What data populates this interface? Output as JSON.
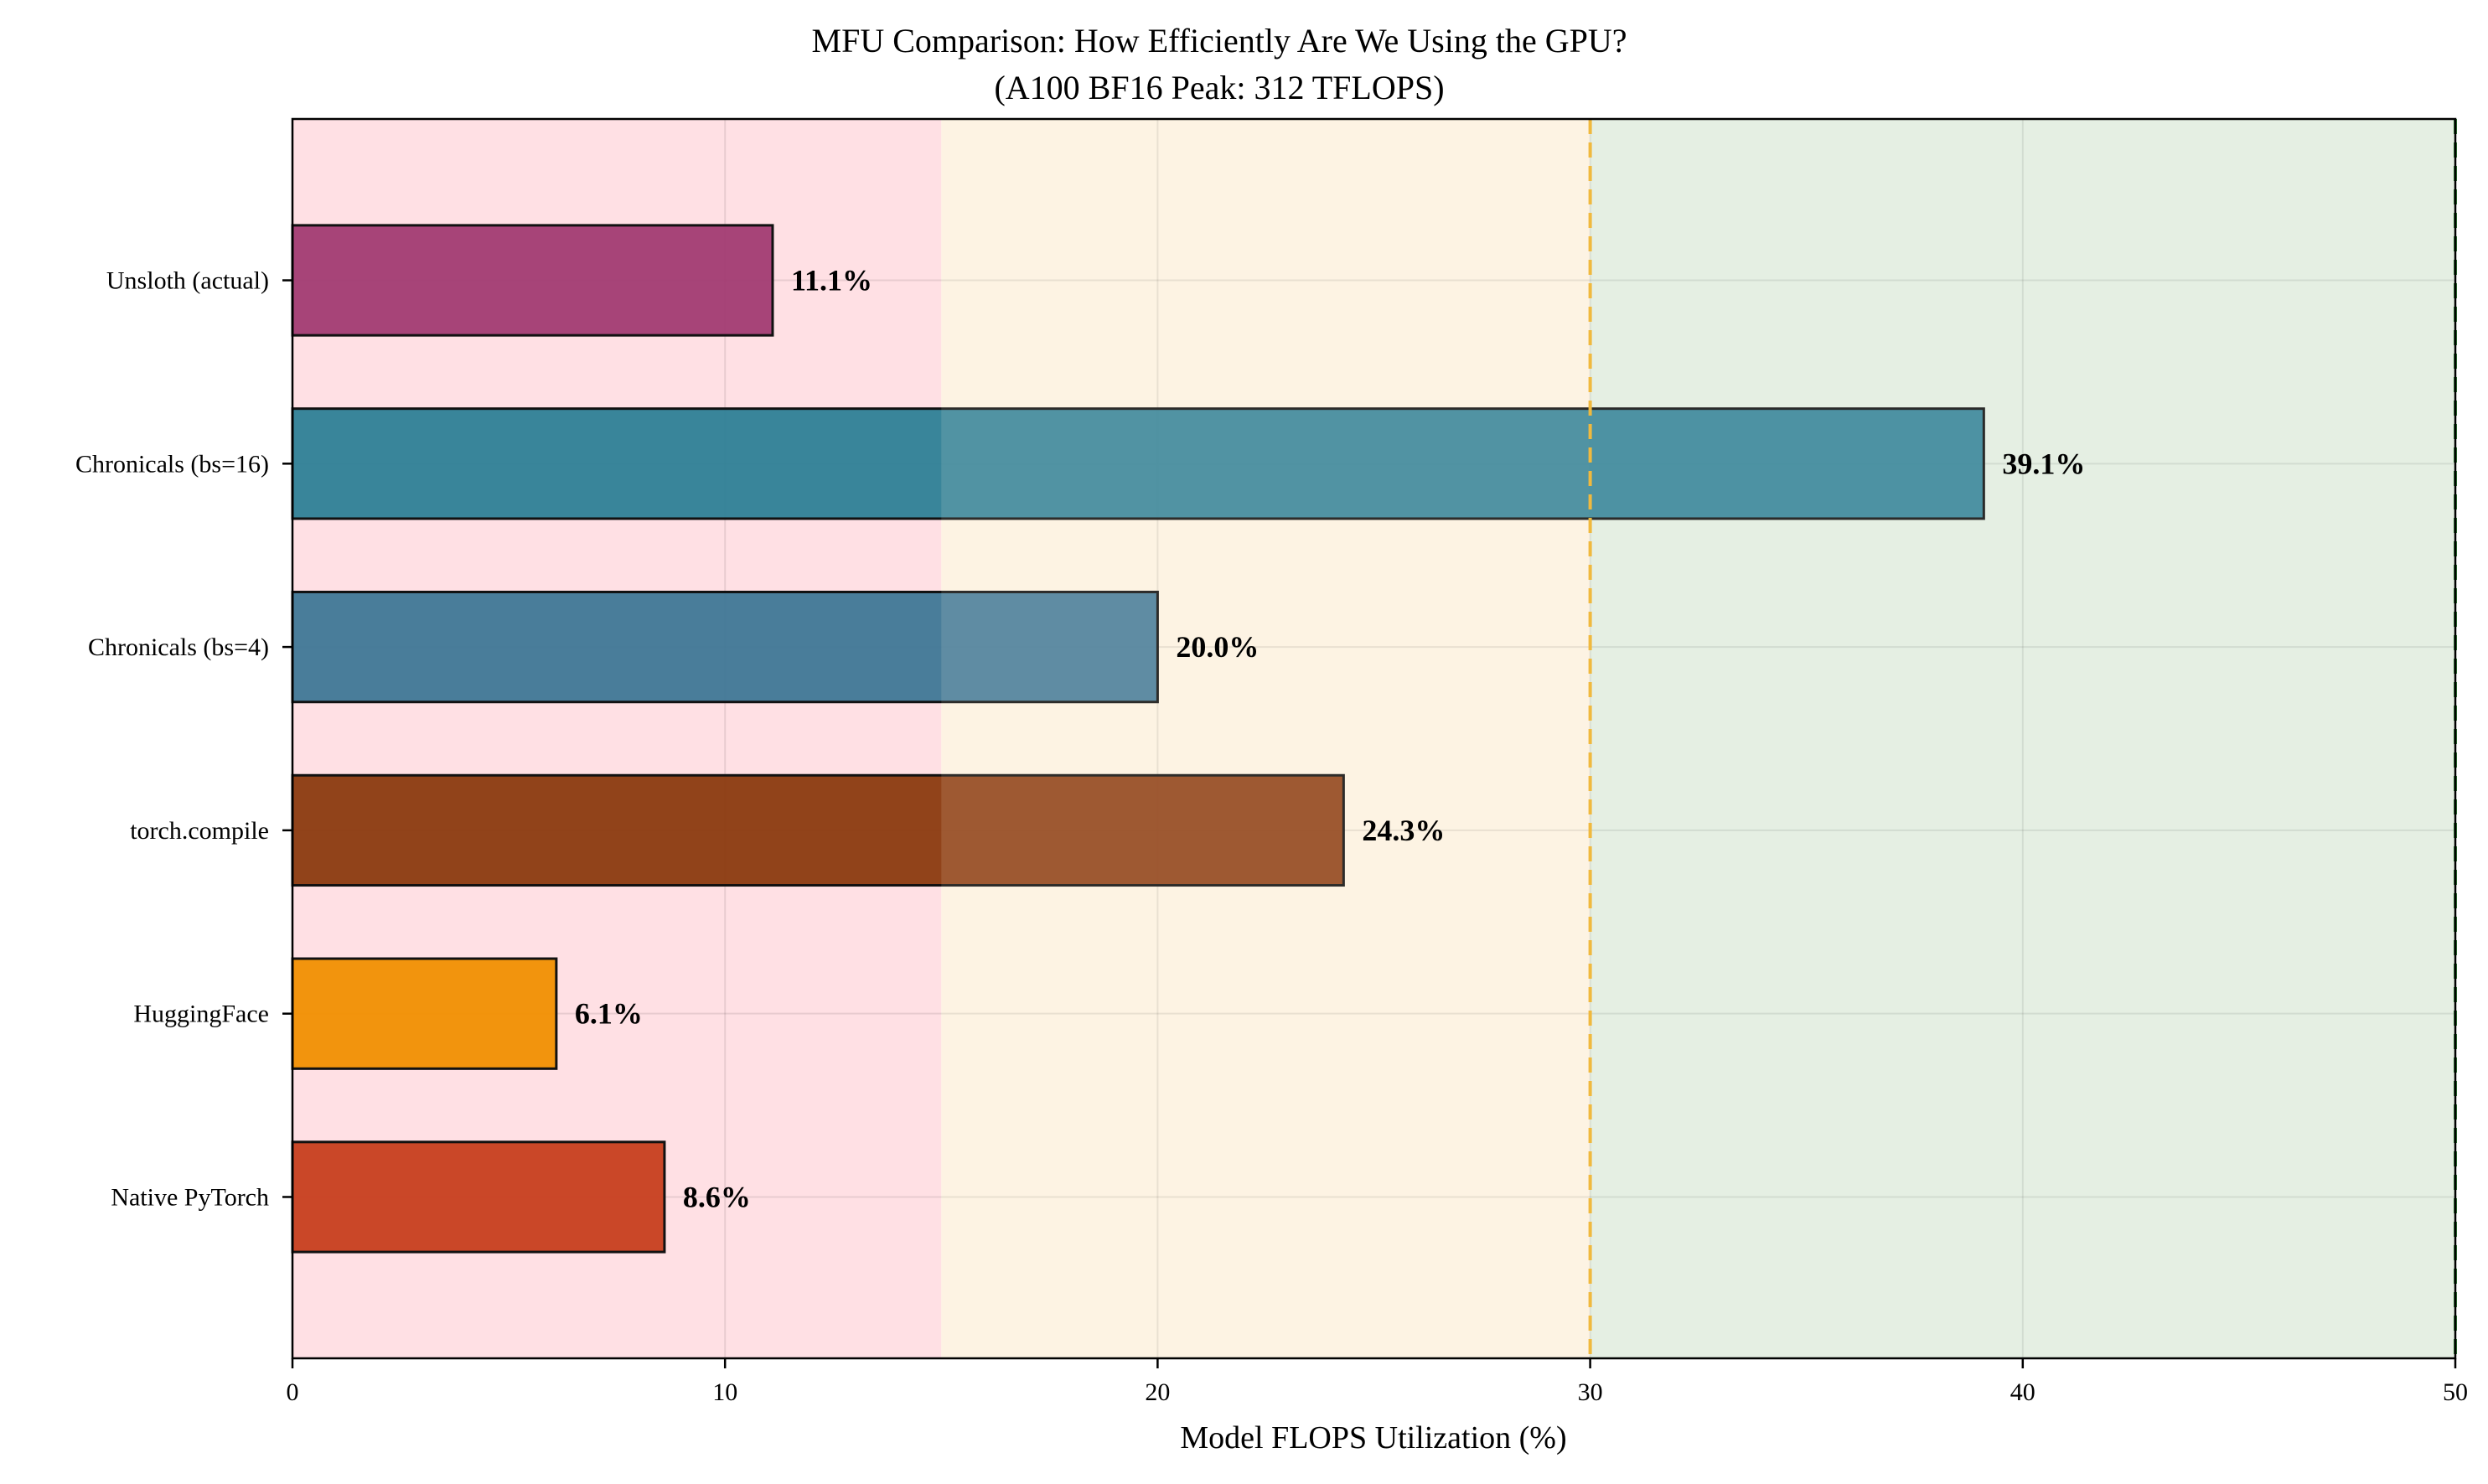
{
  "chart_data": {
    "type": "bar",
    "orientation": "horizontal",
    "title": "MFU Comparison: How Efficiently Are We Using the GPU?",
    "subtitle": "(A100 BF16 Peak: 312 TFLOPS)",
    "xlabel": "Model FLOPS Utilization (%)",
    "ylabel": "",
    "xlim": [
      0,
      50
    ],
    "xticks": [
      0,
      10,
      20,
      30,
      40,
      50
    ],
    "grid": true,
    "categories": [
      "Native PyTorch",
      "HuggingFace",
      "torch.compile",
      "Chronicals (bs=4)",
      "Chronicals (bs=16)",
      "Unsloth (actual)"
    ],
    "values": [
      8.6,
      6.1,
      24.3,
      20.0,
      39.1,
      11.1
    ],
    "value_labels": [
      "8.6%",
      "6.1%",
      "24.3%",
      "20.0%",
      "39.1%",
      "11.1%"
    ],
    "bar_colors": [
      "#c73e1d",
      "#f18f01",
      "#8b3a0f",
      "#3f7796",
      "#2e7f96",
      "#a23b72"
    ],
    "bands": [
      {
        "from": 0,
        "to": 15,
        "color": "#ffe0e4"
      },
      {
        "from": 15,
        "to": 30,
        "color": "#fdf3e3"
      },
      {
        "from": 30,
        "to": 50,
        "color": "#e5f0e3"
      }
    ],
    "reference_lines": [
      {
        "x": 30,
        "color": "#f0b93e",
        "style": "dashed"
      },
      {
        "x": 50,
        "color": "#2e7d32",
        "style": "dashed"
      }
    ]
  }
}
